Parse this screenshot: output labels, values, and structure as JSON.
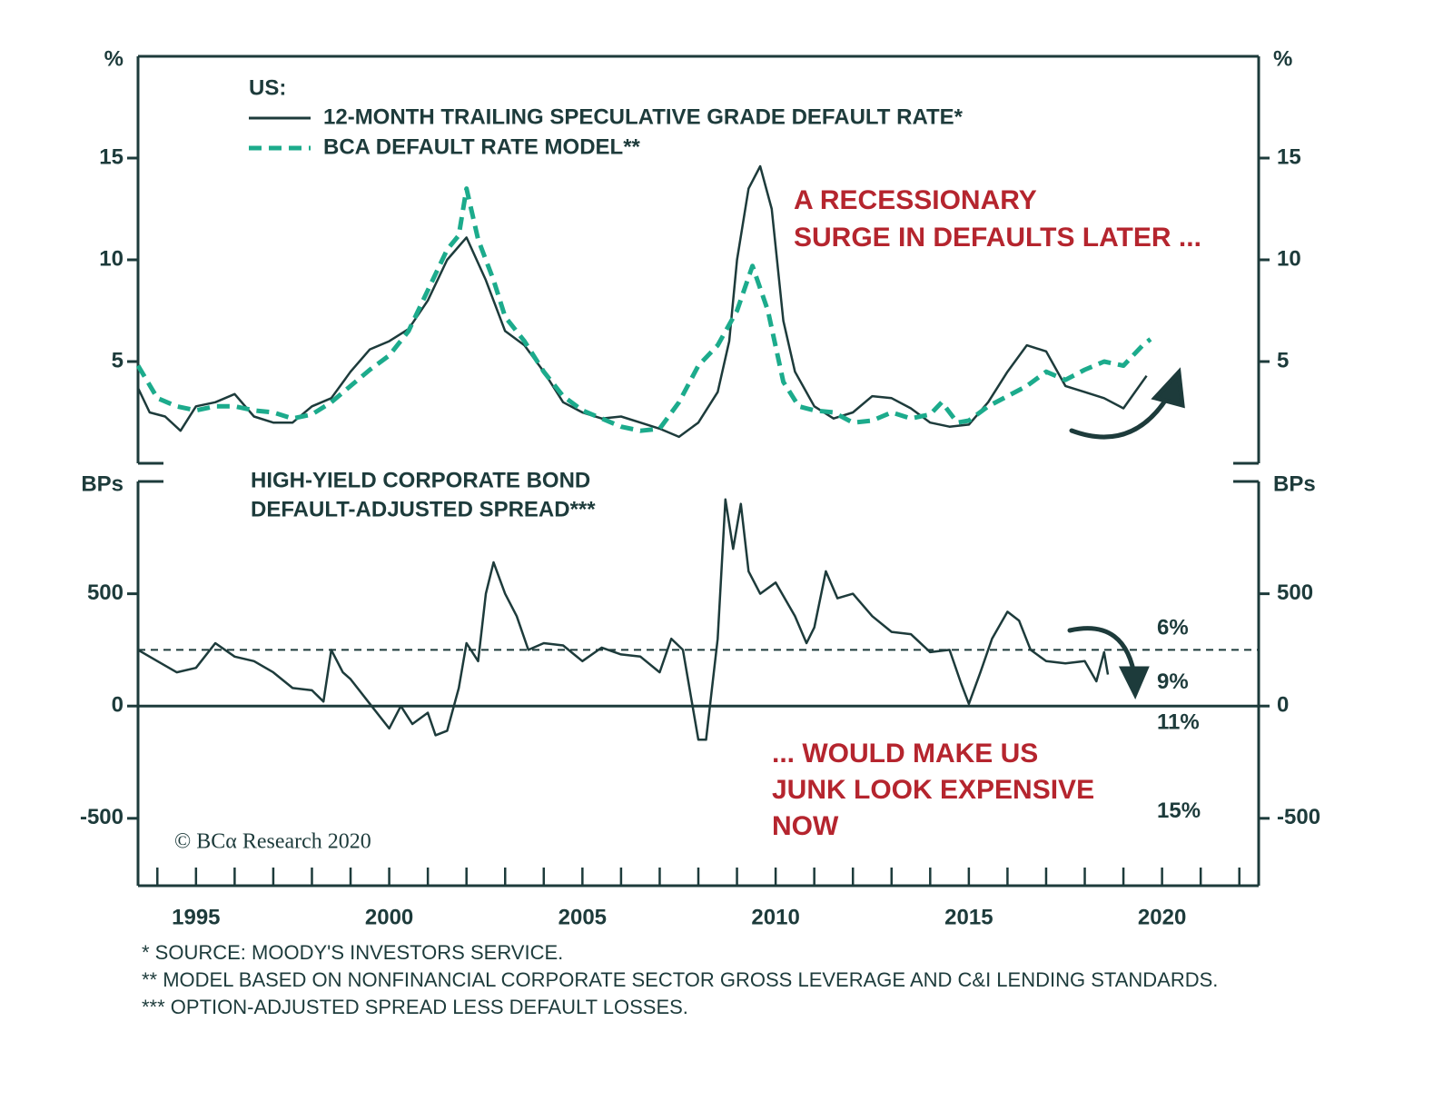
{
  "chart_data": [
    {
      "type": "line",
      "unit_label": "%",
      "legend_title": "US:",
      "annotation": [
        "A RECESSIONARY",
        "SURGE IN DEFAULTS LATER ..."
      ],
      "xlim": [
        1993.5,
        2022.5
      ],
      "ylim": [
        0,
        20
      ],
      "yticks": [
        5,
        10,
        15
      ],
      "series": [
        {
          "name": "12-MONTH TRAILING SPECULATIVE GRADE DEFAULT RATE*",
          "color": "#1d3b3b",
          "style": "solid",
          "x": [
            1993.5,
            1993.8,
            1994.2,
            1994.6,
            1995.0,
            1995.5,
            1996.0,
            1996.5,
            1997.0,
            1997.5,
            1998.0,
            1998.5,
            1999.0,
            1999.5,
            2000.0,
            2000.5,
            2001.0,
            2001.5,
            2002.0,
            2002.5,
            2003.0,
            2003.5,
            2004.0,
            2004.5,
            2005.0,
            2005.5,
            2006.0,
            2006.5,
            2007.0,
            2007.5,
            2008.0,
            2008.5,
            2008.8,
            2009.0,
            2009.3,
            2009.6,
            2009.9,
            2010.2,
            2010.5,
            2011.0,
            2011.5,
            2012.0,
            2012.5,
            2013.0,
            2013.5,
            2014.0,
            2014.5,
            2015.0,
            2015.5,
            2016.0,
            2016.5,
            2017.0,
            2017.5,
            2018.0,
            2018.5,
            2019.0,
            2019.3,
            2019.6
          ],
          "values": [
            3.7,
            2.5,
            2.3,
            1.6,
            2.8,
            3.0,
            3.4,
            2.3,
            2.0,
            2.0,
            2.8,
            3.2,
            4.5,
            5.6,
            6.0,
            6.6,
            8.0,
            10.0,
            11.1,
            9.0,
            6.5,
            5.8,
            4.5,
            3.0,
            2.5,
            2.2,
            2.3,
            2.0,
            1.7,
            1.3,
            2.0,
            3.5,
            6.0,
            10.0,
            13.5,
            14.6,
            12.5,
            7.0,
            4.5,
            2.8,
            2.2,
            2.5,
            3.3,
            3.2,
            2.7,
            2.0,
            1.8,
            1.9,
            3.0,
            4.5,
            5.8,
            5.5,
            3.8,
            3.5,
            3.2,
            2.7,
            3.5,
            4.3
          ]
        },
        {
          "name": "BCA DEFAULT RATE MODEL**",
          "color": "#1cab8c",
          "style": "dashed",
          "x": [
            1993.5,
            1994.0,
            1994.5,
            1995.0,
            1995.5,
            1996.0,
            1996.5,
            1997.0,
            1997.5,
            1998.0,
            1998.5,
            1999.0,
            1999.5,
            2000.0,
            2000.5,
            2001.0,
            2001.5,
            2001.8,
            2002.0,
            2002.3,
            2002.7,
            2003.0,
            2003.5,
            2004.0,
            2004.5,
            2005.0,
            2005.5,
            2006.0,
            2006.5,
            2007.0,
            2007.5,
            2008.0,
            2008.5,
            2009.0,
            2009.4,
            2009.8,
            2010.2,
            2010.6,
            2011.0,
            2011.5,
            2012.0,
            2012.5,
            2013.0,
            2013.5,
            2014.0,
            2014.3,
            2014.7,
            2015.0,
            2015.5,
            2016.0,
            2016.5,
            2017.0,
            2017.5,
            2018.0,
            2018.5,
            2019.0,
            2019.5,
            2019.7
          ],
          "values": [
            4.8,
            3.2,
            2.8,
            2.6,
            2.8,
            2.8,
            2.6,
            2.5,
            2.2,
            2.4,
            3.0,
            3.8,
            4.6,
            5.3,
            6.5,
            8.5,
            10.5,
            11.2,
            13.5,
            11.0,
            9.0,
            7.2,
            6.0,
            4.5,
            3.3,
            2.6,
            2.2,
            1.8,
            1.6,
            1.7,
            3.0,
            4.8,
            5.8,
            7.5,
            9.7,
            7.5,
            4.0,
            2.8,
            2.6,
            2.5,
            2.0,
            2.1,
            2.5,
            2.2,
            2.4,
            3.0,
            2.0,
            2.1,
            2.8,
            3.3,
            3.8,
            4.5,
            4.1,
            4.6,
            5.0,
            4.8,
            5.8,
            6.1
          ]
        }
      ]
    },
    {
      "type": "line",
      "unit_label": "BPs",
      "label_lines": [
        "HIGH-YIELD CORPORATE BOND",
        "DEFAULT-ADJUSTED SPREAD***"
      ],
      "annotation": [
        "... WOULD MAKE US",
        "JUNK LOOK EXPENSIVE",
        "NOW"
      ],
      "reference_line": 250,
      "level_labels": [
        {
          "label": "6%",
          "y": 345
        },
        {
          "label": "9%",
          "y": 104
        },
        {
          "label": "11%",
          "y": -76
        },
        {
          "label": "15%",
          "y": -470
        }
      ],
      "xlim": [
        1993.5,
        2022.5
      ],
      "ylim": [
        -800,
        1000
      ],
      "xticks": [
        1995,
        2000,
        2005,
        2010,
        2015,
        2020
      ],
      "xticks_minor": [
        1994,
        1995,
        1996,
        1997,
        1998,
        1999,
        2000,
        2001,
        2002,
        2003,
        2004,
        2005,
        2006,
        2007,
        2008,
        2009,
        2010,
        2011,
        2012,
        2013,
        2014,
        2015,
        2016,
        2017,
        2018,
        2019,
        2020,
        2021,
        2022
      ],
      "yticks": [
        -500,
        0,
        500
      ],
      "series": [
        {
          "color": "#1d3b3b",
          "x": [
            1993.5,
            1994.0,
            1994.5,
            1995.0,
            1995.5,
            1996.0,
            1996.5,
            1997.0,
            1997.5,
            1998.0,
            1998.3,
            1998.5,
            1998.8,
            1999.0,
            1999.5,
            2000.0,
            2000.3,
            2000.6,
            2001.0,
            2001.2,
            2001.5,
            2001.8,
            2002.0,
            2002.3,
            2002.5,
            2002.7,
            2003.0,
            2003.3,
            2003.6,
            2004.0,
            2004.5,
            2005.0,
            2005.5,
            2006.0,
            2006.5,
            2007.0,
            2007.3,
            2007.6,
            2007.8,
            2008.0,
            2008.2,
            2008.5,
            2008.7,
            2008.9,
            2009.1,
            2009.3,
            2009.6,
            2010.0,
            2010.5,
            2010.8,
            2011.0,
            2011.3,
            2011.6,
            2012.0,
            2012.5,
            2013.0,
            2013.5,
            2014.0,
            2014.5,
            2014.8,
            2015.0,
            2015.3,
            2015.6,
            2016.0,
            2016.3,
            2016.6,
            2017.0,
            2017.5,
            2018.0,
            2018.3,
            2018.5,
            2018.6
          ],
          "values": [
            250,
            200,
            150,
            170,
            280,
            220,
            200,
            150,
            80,
            70,
            20,
            250,
            150,
            120,
            10,
            -100,
            0,
            -80,
            -30,
            -130,
            -110,
            80,
            280,
            200,
            500,
            640,
            500,
            400,
            250,
            280,
            270,
            200,
            260,
            230,
            220,
            150,
            300,
            250,
            50,
            -150,
            -150,
            300,
            920,
            700,
            900,
            600,
            500,
            550,
            400,
            280,
            350,
            600,
            480,
            500,
            400,
            330,
            320,
            240,
            250,
            100,
            10,
            150,
            300,
            420,
            380,
            250,
            200,
            190,
            200,
            110,
            240,
            140
          ]
        }
      ]
    }
  ],
  "copyright": "© BCα Research 2020",
  "footnotes": [
    "*  SOURCE: MOODY'S INVESTORS SERVICE.",
    "**  MODEL BASED ON NONFINANCIAL CORPORATE SECTOR GROSS LEVERAGE AND C&I LENDING STANDARDS.",
    "***  OPTION-ADJUSTED SPREAD LESS DEFAULT LOSSES."
  ]
}
